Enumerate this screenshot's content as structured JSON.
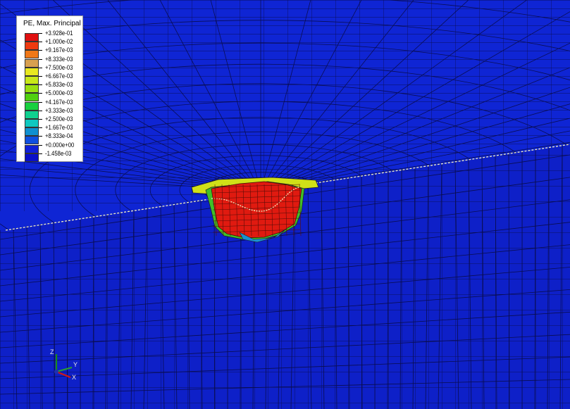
{
  "legend": {
    "title": "PE, Max. Principal",
    "entries": [
      {
        "label": "+3.928e-01",
        "color": "#e01010"
      },
      {
        "label": "+1.000e-02",
        "color": "#ee3a10"
      },
      {
        "label": "+9.167e-03",
        "color": "#f07818"
      },
      {
        "label": "+8.333e-03",
        "color": "#d8a050"
      },
      {
        "label": "+7.500e-03",
        "color": "#e8e820"
      },
      {
        "label": "+6.667e-03",
        "color": "#c8e818"
      },
      {
        "label": "+5.833e-03",
        "color": "#98e010"
      },
      {
        "label": "+5.000e-03",
        "color": "#50d010"
      },
      {
        "label": "+4.167e-03",
        "color": "#18d040"
      },
      {
        "label": "+3.333e-03",
        "color": "#10d090"
      },
      {
        "label": "+2.500e-03",
        "color": "#10c8c0"
      },
      {
        "label": "+1.667e-03",
        "color": "#1090d0"
      },
      {
        "label": "+8.333e-04",
        "color": "#1050e0"
      },
      {
        "label": "+0.000e+00",
        "color": "#1020d8"
      },
      {
        "label": "-1.458e-03",
        "color": "#0a10c8"
      }
    ]
  },
  "triad": {
    "z_label": "Z",
    "y_label": "Y",
    "x_label": "X"
  },
  "colors": {
    "background_mesh": "#0d1fd0",
    "mesh_lines": "#0a0e50",
    "plastic_zone": "#e01a10"
  }
}
